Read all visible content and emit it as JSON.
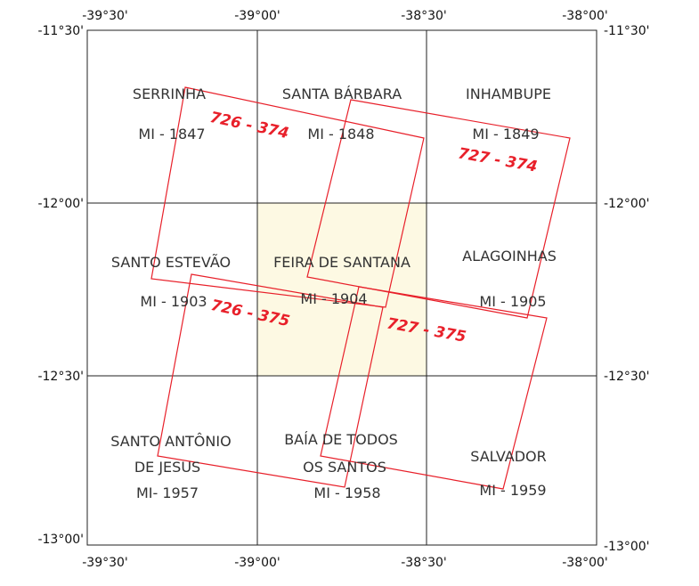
{
  "colors": {
    "grid": "#222222",
    "highlight": "#fdf9e3",
    "scene_outline": "#e8202a",
    "sheet_text": "#333333",
    "scene_text": "#e8202a"
  },
  "coords": {
    "top": [
      "-39°30'",
      "-39°00'",
      "-38°30'",
      "-38°00'"
    ],
    "bottom": [
      "-39°30'",
      "-39°00'",
      "-38°30'",
      "-38°00'"
    ],
    "left": [
      "-11°30'",
      "-12°00'",
      "-12°30'",
      "-13°00'"
    ],
    "right": [
      "-11°30'",
      "-12°00'",
      "-12°30'",
      "-13°00'"
    ]
  },
  "sheets": [
    {
      "lines": [
        "SERRINHA",
        "MI - 1847"
      ],
      "highlight": false
    },
    {
      "lines": [
        "SANTA BÁRBARA",
        "MI - 1848"
      ],
      "highlight": false
    },
    {
      "lines": [
        "INHAMBUPE",
        "MI - 1849"
      ],
      "highlight": false
    },
    {
      "lines": [
        "SANTO ESTEVÃO",
        "MI - 1903"
      ],
      "highlight": false
    },
    {
      "lines": [
        "FEIRA DE SANTANA",
        "MI - 1904"
      ],
      "highlight": true
    },
    {
      "lines": [
        "ALAGOINHAS",
        "MI - 1905"
      ],
      "highlight": false
    },
    {
      "lines": [
        "SANTO ANTÔNIO",
        "DE JESUS",
        "MI- 1957"
      ],
      "highlight": false
    },
    {
      "lines": [
        "BAÍA DE TODOS",
        "OS SANTOS",
        "MI - 1958"
      ],
      "highlight": false
    },
    {
      "lines": [
        "SALVADOR",
        "MI - 1959"
      ],
      "highlight": false
    }
  ],
  "scenes": [
    {
      "label": "726 - 374"
    },
    {
      "label": "727 - 374"
    },
    {
      "label": "726 - 375"
    },
    {
      "label": "727 - 375"
    }
  ]
}
